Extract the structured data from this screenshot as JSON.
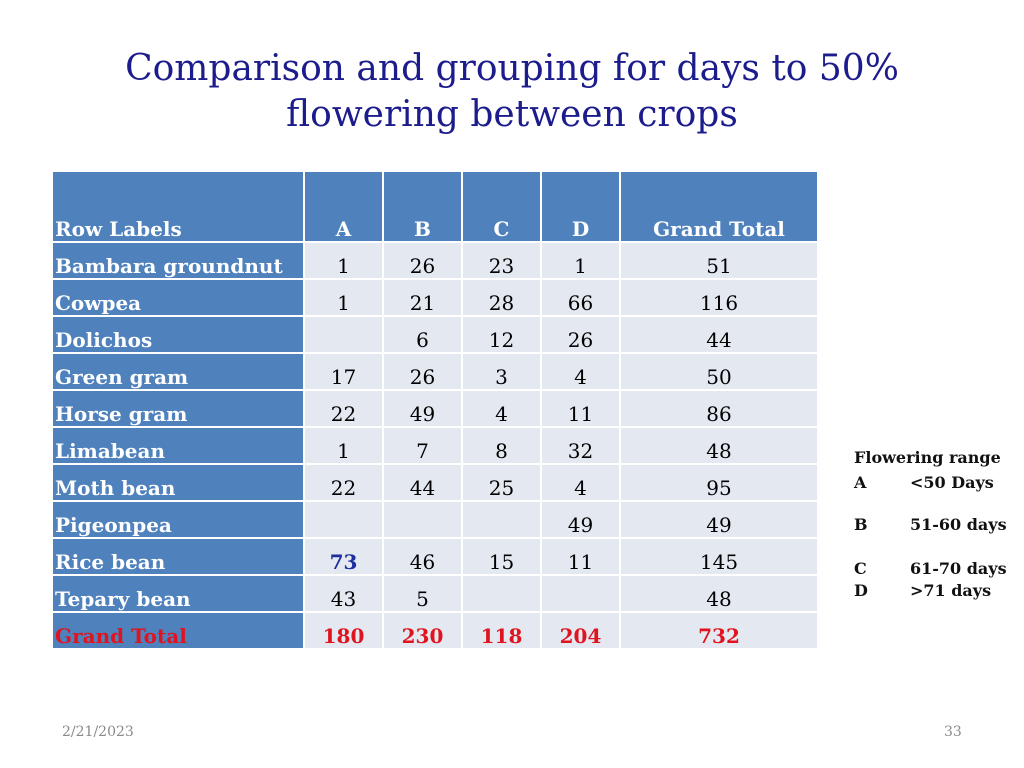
{
  "slide": {
    "title_line1": "Comparison and grouping for days to 50%",
    "title_line2": "flowering between crops",
    "date": "2/21/2023",
    "page_number": "33"
  },
  "table": {
    "headers": [
      "Row Labels",
      "A",
      "B",
      "C",
      "D",
      "Grand Total"
    ],
    "rows": [
      {
        "label": "Bambara groundnut",
        "A": "1",
        "B": "26",
        "C": "23",
        "D": "1",
        "total": "51"
      },
      {
        "label": "Cowpea",
        "A": "1",
        "B": "21",
        "C": "28",
        "D": "66",
        "total": "116"
      },
      {
        "label": "Dolichos",
        "A": "",
        "B": "6",
        "C": "12",
        "D": "26",
        "total": "44"
      },
      {
        "label": "Green gram",
        "A": "17",
        "B": "26",
        "C": "3",
        "D": "4",
        "total": "50"
      },
      {
        "label": "Horse gram",
        "A": "22",
        "B": "49",
        "C": "4",
        "D": "11",
        "total": "86"
      },
      {
        "label": "Limabean",
        "A": "1",
        "B": "7",
        "C": "8",
        "D": "32",
        "total": "48"
      },
      {
        "label": "Moth bean",
        "A": "22",
        "B": "44",
        "C": "25",
        "D": "4",
        "total": "95"
      },
      {
        "label": "Pigeonpea",
        "A": "",
        "B": "",
        "C": "",
        "D": "49",
        "total": "49"
      },
      {
        "label": "Rice bean",
        "A": "73",
        "B": "46",
        "C": "15",
        "D": "11",
        "total": "145"
      },
      {
        "label": "Tepary bean",
        "A": "43",
        "B": "5",
        "C": "",
        "D": "",
        "total": "48"
      }
    ],
    "grand_total": {
      "label": "Grand Total",
      "A": "180",
      "B": "230",
      "C": "118",
      "D": "204",
      "total": "732"
    },
    "colors": {
      "header_bg": "#4f81bd",
      "cell_bg": "#e3e8f1",
      "total_text": "#e0141e",
      "highlight_text": "#1c2ea0"
    }
  },
  "legend": {
    "heading": "Flowering range",
    "items": [
      {
        "key": "A",
        "range": "<50 Days"
      },
      {
        "key": "B",
        "range": "51-60 days"
      },
      {
        "key": "C",
        "range": "61-70 days"
      },
      {
        "key": "D",
        "range": ">71 days"
      }
    ]
  }
}
